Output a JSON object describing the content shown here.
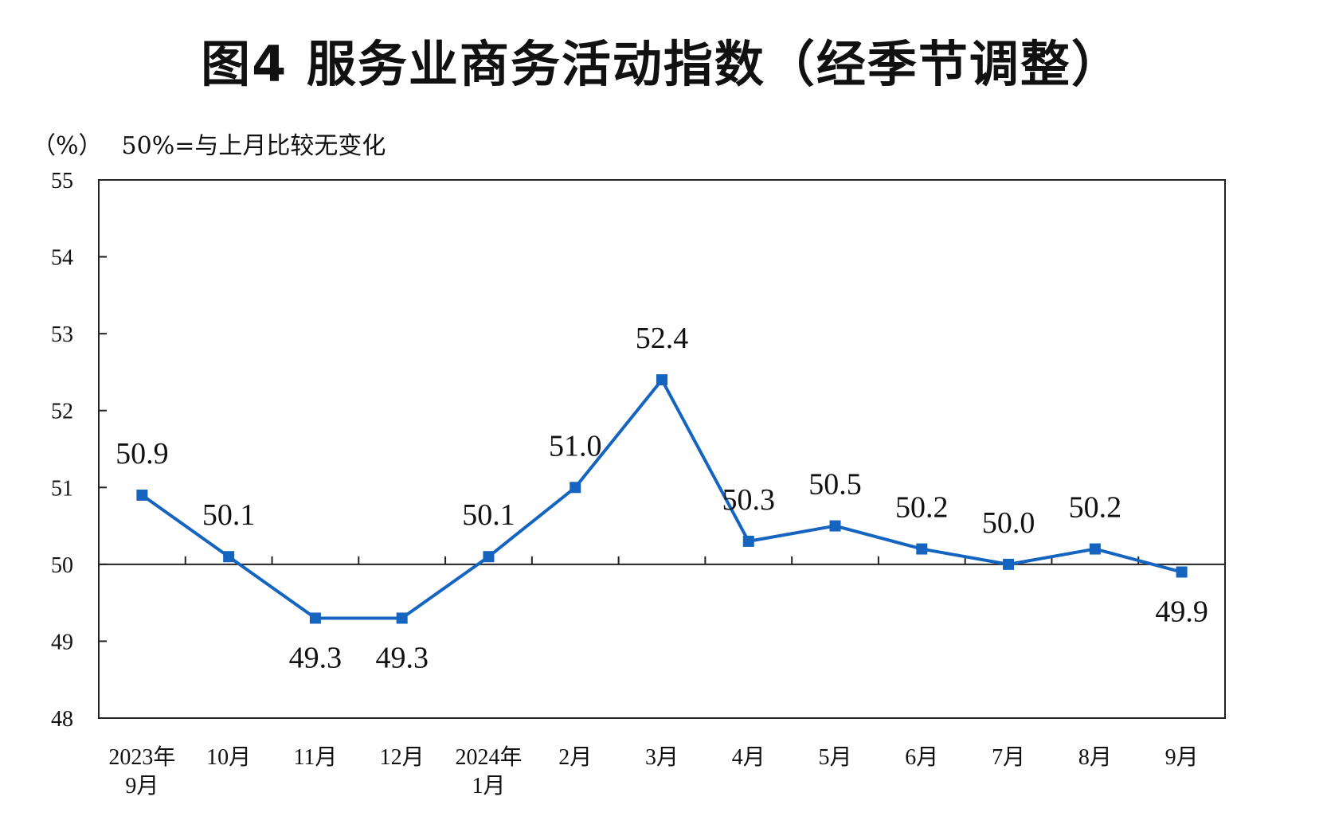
{
  "title": "图4  服务业商务活动指数（经季节调整）",
  "unit_label": "（%）",
  "note": "50%=与上月比较无变化",
  "colors": {
    "line": "#1565C0",
    "marker": "#1565C0",
    "axis": "#222222"
  },
  "chart_data": {
    "type": "line",
    "title": "图4  服务业商务活动指数（经季节调整）",
    "ylabel": "（%）",
    "ylim": [
      48,
      55
    ],
    "yticks": [
      48,
      49,
      50,
      51,
      52,
      53,
      54,
      55
    ],
    "reference_line": 50,
    "grid": false,
    "categories": [
      [
        "2023年",
        "9月"
      ],
      [
        "10月"
      ],
      [
        "11月"
      ],
      [
        "12月"
      ],
      [
        "2024年",
        "1月"
      ],
      [
        "2月"
      ],
      [
        "3月"
      ],
      [
        "4月"
      ],
      [
        "5月"
      ],
      [
        "6月"
      ],
      [
        "7月"
      ],
      [
        "8月"
      ],
      [
        "9月"
      ]
    ],
    "series": [
      {
        "values": [
          50.9,
          50.1,
          49.3,
          49.3,
          50.1,
          51.0,
          52.4,
          50.3,
          50.5,
          50.2,
          50.0,
          50.2,
          49.9
        ],
        "labels": [
          "50.9",
          "50.1",
          "49.3",
          "49.3",
          "50.1",
          "51.0",
          "52.4",
          "50.3",
          "50.5",
          "50.2",
          "50.0",
          "50.2",
          "49.9"
        ],
        "label_position": [
          "above",
          "above",
          "below",
          "below",
          "above",
          "above",
          "above",
          "above",
          "above",
          "above",
          "above",
          "above",
          "below"
        ]
      }
    ]
  }
}
